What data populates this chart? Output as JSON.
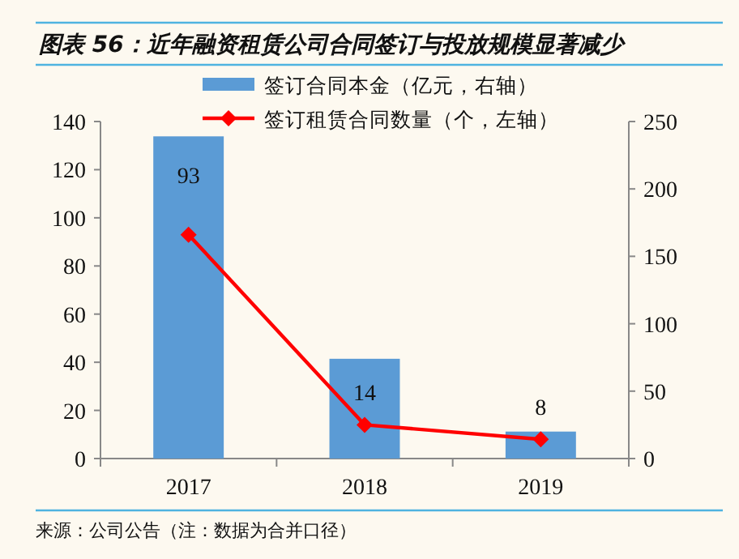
{
  "chart_data": {
    "type": "bar",
    "title": "图表 56：近年融资租赁公司合同签订与投放规模显著减少",
    "categories": [
      "2017",
      "2018",
      "2019"
    ],
    "series": [
      {
        "name": "签订合同本金（亿元，右轴）",
        "axis": "y2",
        "color": "#5b9bd5",
        "values": [
          239,
          74,
          20
        ]
      },
      {
        "name": "签订租赁合同数量（个，左轴）",
        "type": "line",
        "color": "#ff0000",
        "values": [
          93,
          14,
          8
        ],
        "value_labels": [
          "93",
          "14",
          "8"
        ]
      }
    ],
    "marker": "diamond",
    "line_style": "solid",
    "legend": "top",
    "grid": false,
    "ylim": [
      0,
      140
    ],
    "yticks": [
      0,
      20,
      40,
      60,
      80,
      100,
      120,
      140
    ],
    "y2lim": [
      0,
      250
    ],
    "y2ticks": [
      0,
      50,
      100,
      150,
      200,
      250
    ],
    "annotations": [
      "来源：公司公告（注：数据为合并口径）"
    ]
  }
}
